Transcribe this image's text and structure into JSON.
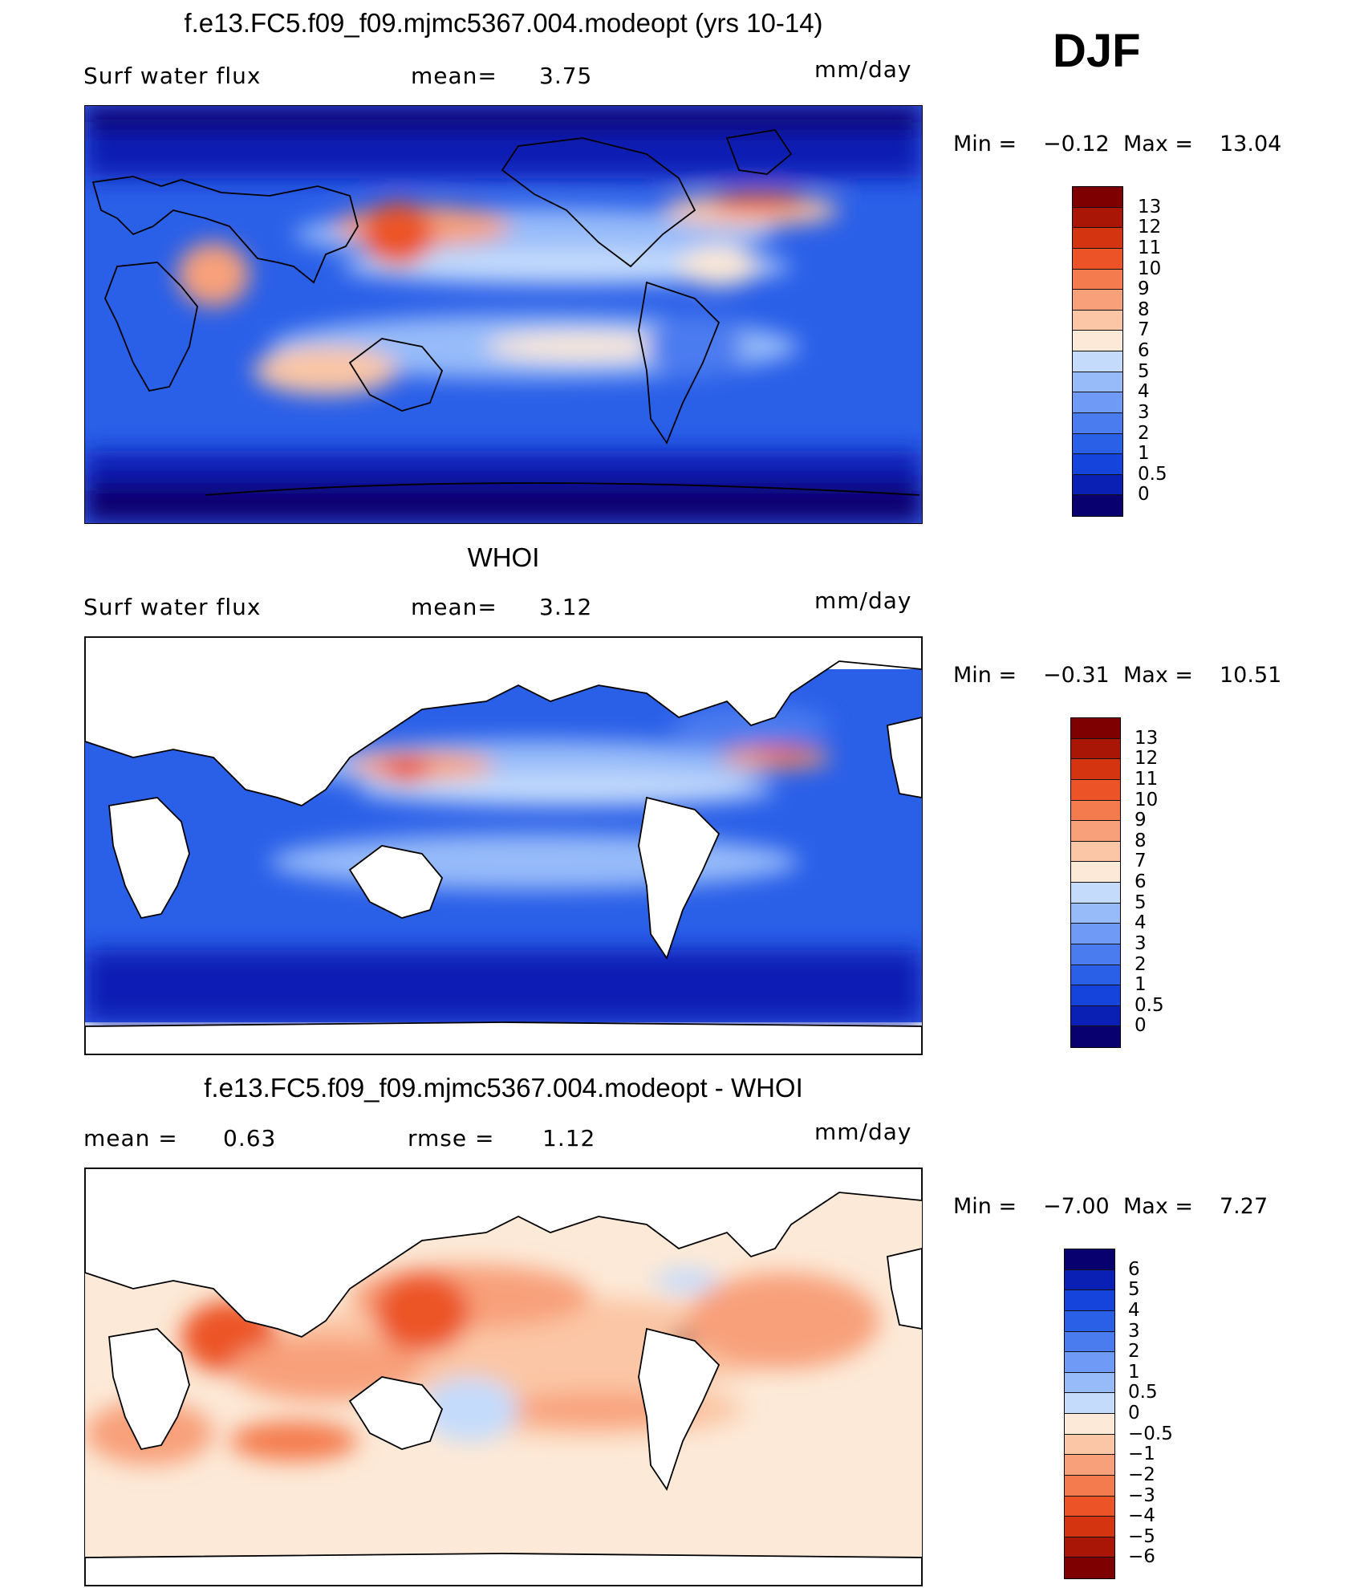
{
  "season": "DJF",
  "colors": {
    "abs_scale": [
      "#08006e",
      "#0a1fb4",
      "#1444dc",
      "#2a5fe8",
      "#4b7cef",
      "#6f9af5",
      "#97bbf9",
      "#c4dbfc",
      "#fce9d7",
      "#fbc6a5",
      "#f8a07a",
      "#f47b4e",
      "#ec5427",
      "#d4340f",
      "#a91606",
      "#7f0000"
    ],
    "diff_scale": [
      "#7f0000",
      "#a91606",
      "#d4340f",
      "#ec5427",
      "#f47b4e",
      "#f8a07a",
      "#fbc6a5",
      "#fce9d7",
      "#c4dbfc",
      "#97bbf9",
      "#6f9af5",
      "#4b7cef",
      "#2a5fe8",
      "#1444dc",
      "#0a1fb4",
      "#08006e"
    ]
  },
  "panels": [
    {
      "title": "f.e13.FC5.f09_f09.mjmc5367.004.modeopt (yrs 10-14)",
      "left_label": "Surf  water  flux",
      "mid_label": "mean=",
      "mid_value": "3.75",
      "unit": "mm/day",
      "min_label": "Min  =",
      "min_value": "−0.12",
      "max_label": "Max  =",
      "max_value": "13.04",
      "levels": [
        "13",
        "12",
        "11",
        "10",
        "9",
        "8",
        "7",
        "6",
        "5",
        "4",
        "3",
        "2",
        "1",
        "0.5",
        "0"
      ]
    },
    {
      "title": "WHOI",
      "left_label": "Surf  water  flux",
      "mid_label": "mean=",
      "mid_value": "3.12",
      "unit": "mm/day",
      "min_label": "Min  =",
      "min_value": "−0.31",
      "max_label": "Max  =",
      "max_value": "10.51",
      "levels": [
        "13",
        "12",
        "11",
        "10",
        "9",
        "8",
        "7",
        "6",
        "5",
        "4",
        "3",
        "2",
        "1",
        "0.5",
        "0"
      ]
    },
    {
      "title": "f.e13.FC5.f09_f09.mjmc5367.004.modeopt - WHOI",
      "left_label": "mean  =",
      "left_value": "0.63",
      "mid_label": "rmse  =",
      "mid_value": "1.12",
      "unit": "mm/day",
      "min_label": "Min  =",
      "min_value": "−7.00",
      "max_label": "Max  =",
      "max_value": "7.27",
      "levels": [
        "6",
        "5",
        "4",
        "3",
        "2",
        "1",
        "0.5",
        "0",
        "−0.5",
        "−1",
        "−2",
        "−3",
        "−4",
        "−5",
        "−6"
      ]
    }
  ],
  "chart_data": [
    {
      "type": "heatmap",
      "title": "f.e13.FC5.f09_f09.mjmc5367.004.modeopt (yrs 10-14)",
      "variable": "Surf water flux",
      "mean": 3.75,
      "min": -0.12,
      "max": 13.04,
      "units": "mm/day",
      "contour_levels": [
        0,
        0.5,
        1,
        2,
        3,
        4,
        5,
        6,
        7,
        8,
        9,
        10,
        11,
        12,
        13
      ]
    },
    {
      "type": "heatmap",
      "title": "WHOI",
      "variable": "Surf water flux",
      "mean": 3.12,
      "min": -0.31,
      "max": 10.51,
      "units": "mm/day",
      "contour_levels": [
        0,
        0.5,
        1,
        2,
        3,
        4,
        5,
        6,
        7,
        8,
        9,
        10,
        11,
        12,
        13
      ]
    },
    {
      "type": "heatmap",
      "title": "f.e13.FC5.f09_f09.mjmc5367.004.modeopt - WHOI",
      "mean": 0.63,
      "rmse": 1.12,
      "min": -7.0,
      "max": 7.27,
      "units": "mm/day",
      "contour_levels": [
        -6,
        -5,
        -4,
        -3,
        -2,
        -1,
        -0.5,
        0,
        0.5,
        1,
        2,
        3,
        4,
        5,
        6
      ]
    }
  ]
}
